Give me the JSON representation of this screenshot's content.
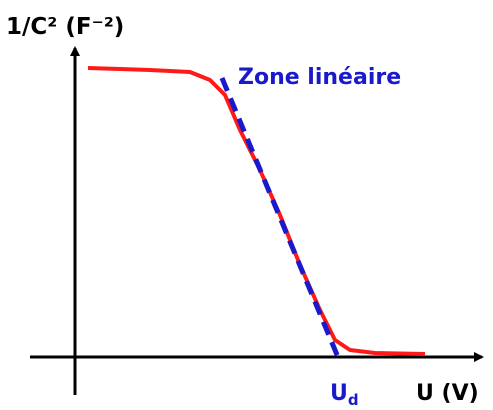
{
  "y_axis_label": "1/C² (F⁻²)",
  "x_axis_label": "U (V)",
  "annotation": "Zone linéaire",
  "intercept_label": {
    "main": "U",
    "sub": "d"
  }
}
